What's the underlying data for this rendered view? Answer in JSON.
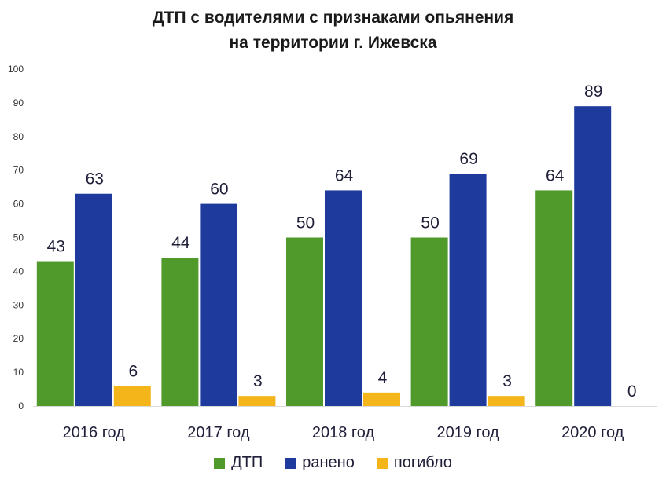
{
  "chart_data": {
    "type": "bar",
    "title_lines": [
      "ДТП с водителями  с признаками опьянения",
      "на территории г. Ижевска"
    ],
    "categories": [
      "2016 год",
      "2017 год",
      "2018 год",
      "2019 год",
      "2020 год"
    ],
    "series": [
      {
        "name": "ДТП",
        "values": [
          43,
          44,
          50,
          50,
          64
        ],
        "color": "#4f9a2a"
      },
      {
        "name": "ранено",
        "values": [
          63,
          60,
          64,
          69,
          89
        ],
        "color": "#1e3a9c"
      },
      {
        "name": "погибло",
        "values": [
          6,
          3,
          4,
          3,
          0
        ],
        "color": "#f3b51a"
      }
    ],
    "ylim": [
      0,
      100
    ],
    "yticks": [
      0,
      10,
      20,
      30,
      40,
      50,
      60,
      70,
      80,
      90,
      100
    ],
    "grid": false,
    "legend": "bottom"
  }
}
